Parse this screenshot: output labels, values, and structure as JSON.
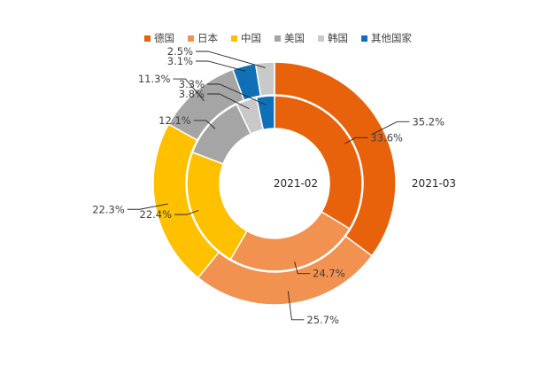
{
  "chart_data": {
    "type": "pie",
    "subtype": "nested-donut",
    "legend": {
      "position": "top",
      "entries": [
        "德国",
        "日本",
        "中国",
        "美国",
        "韩国",
        "其他国家"
      ]
    },
    "colors": {
      "德国": "#e8620c",
      "日本": "#f29250",
      "中国": "#ffc000",
      "美国": "#a5a5a5",
      "韩国": "#c9c9c9",
      "其他国家": "#0f6fb7"
    },
    "series": [
      {
        "name": "2021-02",
        "ring": "inner",
        "categories": [
          "德国",
          "日本",
          "中国",
          "美国",
          "韩国",
          "其他国家"
        ],
        "values": [
          33.6,
          24.7,
          22.4,
          12.1,
          3.8,
          3.3
        ],
        "labels": [
          "33.6%",
          "24.7%",
          "22.4%",
          "12.1%",
          "3.8%",
          "3.3%"
        ]
      },
      {
        "name": "2021-03",
        "ring": "outer",
        "categories": [
          "德国",
          "日本",
          "中国",
          "美国",
          "其他国家",
          "韩国"
        ],
        "values": [
          35.2,
          25.7,
          22.3,
          11.3,
          3.1,
          2.5
        ],
        "labels": [
          "35.2%",
          "25.7%",
          "22.3%",
          "11.3%",
          "3.1%",
          "2.5%"
        ]
      }
    ]
  }
}
